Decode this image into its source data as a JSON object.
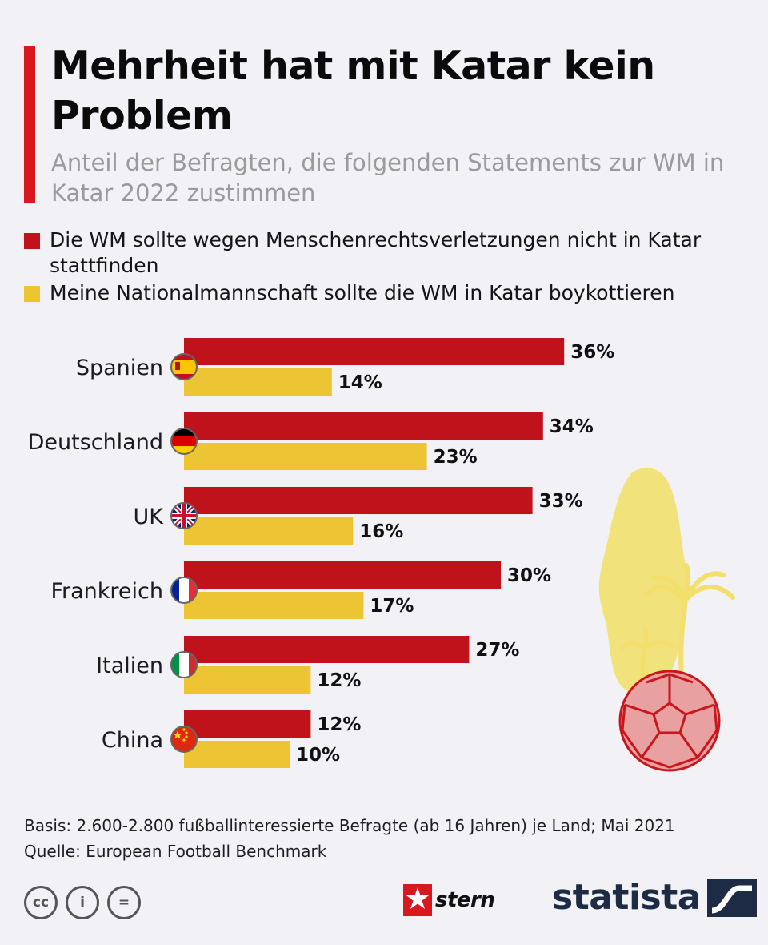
{
  "header": {
    "title": "Mehrheit hat mit Katar kein Problem",
    "subtitle": "Anteil der Befragten, die folgenden Statements zur WM in Katar 2022 zustimmen"
  },
  "colors": {
    "accent": "#d7191f",
    "series_red": "#c0121a",
    "series_yellow": "#ecc434",
    "ball": "#e8a0a0",
    "map": "#f2e27c"
  },
  "chart_data": {
    "type": "bar",
    "orientation": "horizontal",
    "title": "Mehrheit hat mit Katar kein Problem",
    "subtitle": "Anteil der Befragten, die folgenden Statements zur WM in Katar 2022 zustimmen",
    "categories": [
      "Spanien",
      "Deutschland",
      "UK",
      "Frankreich",
      "Italien",
      "China"
    ],
    "series": [
      {
        "name": "Die WM sollte wegen Menschenrechtsverletzungen nicht in Katar stattfinden",
        "color": "#c0121a",
        "values": [
          36,
          34,
          33,
          30,
          27,
          12
        ],
        "labels": [
          "36%",
          "34%",
          "33%",
          "30%",
          "27%",
          "12%"
        ]
      },
      {
        "name": "Meine Nationalmannschaft sollte die WM in Katar boykottieren",
        "color": "#ecc434",
        "values": [
          14,
          23,
          16,
          17,
          12,
          10
        ],
        "labels": [
          "14%",
          "23%",
          "16%",
          "17%",
          "12%",
          "10%"
        ]
      }
    ],
    "unit": "%",
    "xlim": [
      0,
      40
    ],
    "grid": false,
    "legend": "top"
  },
  "footer": {
    "basis": "Basis: 2.600-2.800 fußballinteressierte Befragte (ab 16 Jahren) je Land; Mai 2021",
    "source": "Quelle: European Football Benchmark"
  },
  "logos": {
    "stern": "stern",
    "statista": "statista",
    "cc_icons": [
      "cc-icon",
      "by-icon",
      "nd-icon"
    ]
  },
  "license_glyphs": [
    "cc",
    "i",
    "="
  ]
}
